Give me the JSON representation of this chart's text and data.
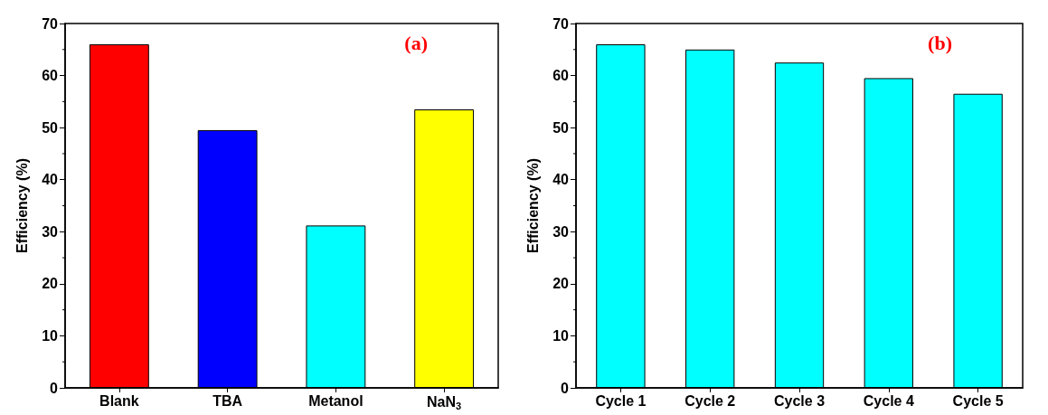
{
  "chart_data": [
    {
      "type": "bar",
      "ylabel": "Efficiency (%)",
      "categories": [
        "Blank",
        "TBA",
        "Metanol",
        "NaN$_{3}$"
      ],
      "values": [
        66,
        49.5,
        31.2,
        53.5
      ],
      "colors": [
        "#ff0000",
        "#0000ff",
        "#00ffff",
        "#ffff00"
      ],
      "ylim": [
        0,
        70
      ],
      "yticks": [
        0,
        10,
        20,
        30,
        40,
        50,
        60,
        70
      ],
      "annotations": [
        "(a)"
      ]
    },
    {
      "type": "bar",
      "ylabel": "Efficiency (%)",
      "categories": [
        "Cycle 1",
        "Cycle 2",
        "Cycle 3",
        "Cycle 4",
        "Cycle 5"
      ],
      "values": [
        66,
        65,
        62.5,
        59.5,
        56.5
      ],
      "colors": [
        "#00ffff",
        "#00ffff",
        "#00ffff",
        "#00ffff",
        "#00ffff"
      ],
      "ylim": [
        0,
        70
      ],
      "yticks": [
        0,
        10,
        20,
        30,
        40,
        50,
        60,
        70
      ],
      "annotations": [
        "(b)"
      ]
    }
  ]
}
